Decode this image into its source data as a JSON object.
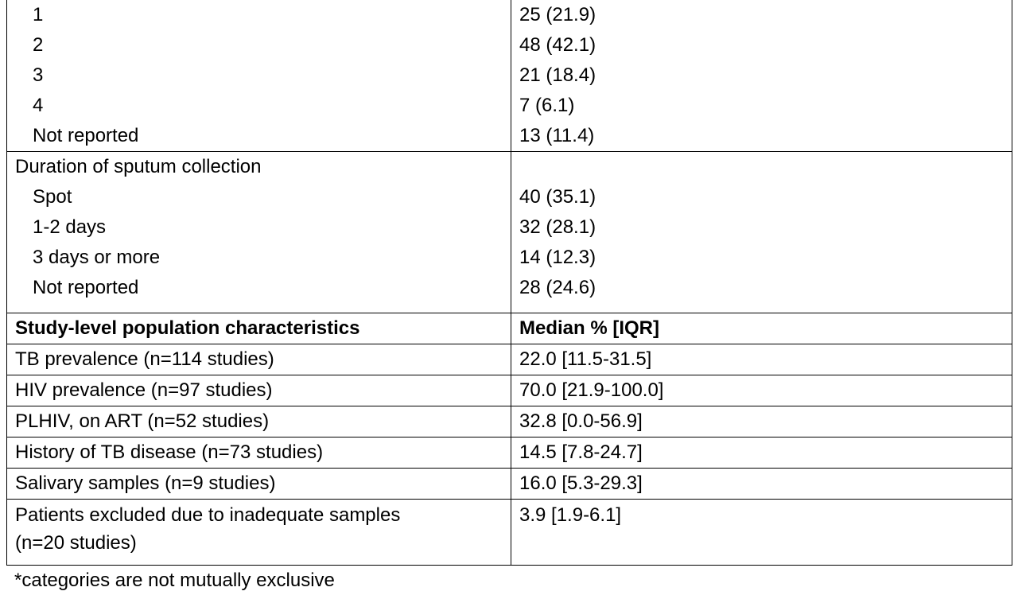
{
  "table": {
    "groups": [
      {
        "rows": [
          {
            "label": "1",
            "value": "25 (21.9)"
          },
          {
            "label": "2",
            "value": "48 (42.1)"
          },
          {
            "label": "3",
            "value": "21 (18.4)"
          },
          {
            "label": "4",
            "value": "7 (6.1)"
          },
          {
            "label": "Not reported",
            "value": "13 (11.4)"
          }
        ]
      },
      {
        "heading": "Duration of sputum collection",
        "rows": [
          {
            "label": "Spot",
            "value": "40 (35.1)"
          },
          {
            "label": "1-2 days",
            "value": "32 (28.1)"
          },
          {
            "label": "3 days or more",
            "value": "14 (12.3)"
          },
          {
            "label": "Not reported",
            "value": "28 (24.6)"
          }
        ]
      }
    ],
    "header": [
      "Study-level population characteristics",
      "Median %  [IQR]"
    ],
    "rows": [
      [
        [
          "TB prevalence (n=114 studies)"
        ],
        "22.0 [11.5-31.5]"
      ],
      [
        [
          "HIV prevalence (n=97 studies)"
        ],
        "70.0 [21.9-100.0]"
      ],
      [
        [
          "PLHIV, on ART (n=52 studies)"
        ],
        "32.8 [0.0-56.9]"
      ],
      [
        [
          "History of TB disease (n=73 studies)"
        ],
        "14.5 [7.8-24.7]"
      ],
      [
        [
          "Salivary samples (n=9 studies)"
        ],
        "16.0 [5.3-29.3]"
      ],
      [
        [
          "Patients excluded due to inadequate samples",
          "(n=20 studies)"
        ],
        "3.9 [1.9-6.1]"
      ]
    ]
  },
  "footnote": "*categories are not mutually exclusive"
}
